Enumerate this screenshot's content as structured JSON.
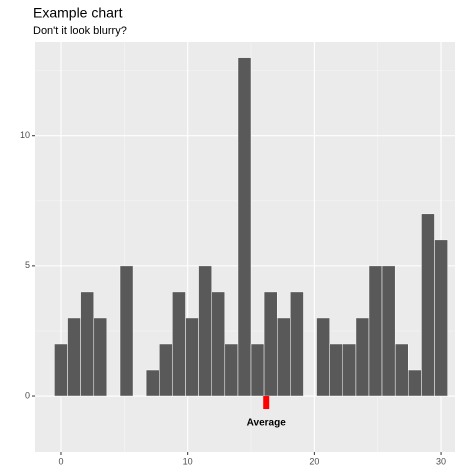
{
  "chart_data": {
    "type": "histogram",
    "title": "Example chart",
    "subtitle": "Don't it look blurry?",
    "bins": [
      -0.52,
      0.52,
      1.55,
      2.59,
      3.62,
      4.66,
      5.69,
      6.72,
      7.76,
      8.79,
      9.83,
      10.86,
      11.9,
      12.93,
      13.97,
      15.0,
      16.03,
      17.07,
      18.1,
      19.14,
      20.17,
      21.21,
      22.24,
      23.28,
      24.31,
      25.34,
      26.38,
      27.41,
      28.45,
      29.48,
      30.52
    ],
    "values": [
      2,
      3,
      4,
      3,
      0,
      5,
      0,
      1,
      2,
      4,
      3,
      5,
      4,
      2,
      13,
      2,
      4,
      3,
      4,
      0,
      3,
      2,
      2,
      3,
      5,
      5,
      2,
      1,
      7,
      6
    ],
    "color": "#595959",
    "xlim": [
      -2.05,
      31.1
    ],
    "xticks": [
      0,
      10,
      20,
      30
    ],
    "x_minor_grid": [
      5,
      15,
      25
    ],
    "ylim": [
      -2.15,
      13.6
    ],
    "yticks": [
      0,
      5,
      10
    ],
    "y_minor_grid": [
      2.5,
      7.5,
      12.5
    ],
    "grid": true,
    "average": {
      "label": "Average",
      "x": 16.2,
      "color": "#ff0000"
    }
  }
}
